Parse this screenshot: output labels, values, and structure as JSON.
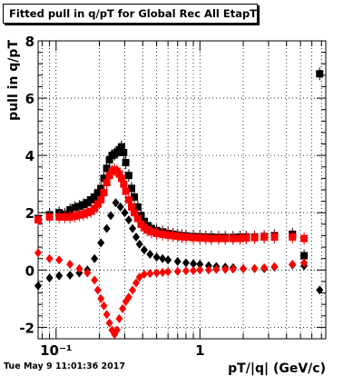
{
  "title": "Fitted pull in q/pT for Global Rec All EtapT",
  "footer_text": "Tue May  9 11:01:36 2017",
  "chart_data": {
    "type": "scatter",
    "title": "Fitted pull in q/pT for Global Rec All EtapT",
    "xlabel": "pT/|q| (GeV/c)",
    "ylabel": "pull in q/pT",
    "x_scale": "log",
    "xlim": [
      0.075,
      7.5
    ],
    "ylim": [
      -2.4,
      8
    ],
    "x_ticks": [
      {
        "v": 0.1,
        "label": "10⁻¹"
      },
      {
        "v": 1,
        "label": "1"
      }
    ],
    "y_ticks": [
      -2,
      0,
      2,
      4,
      6,
      8
    ],
    "grid": true,
    "series": [
      {
        "role": "sigma",
        "color": "#000000",
        "marker": "square",
        "points": [
          [
            0.075,
            1.8
          ],
          [
            0.09,
            1.93
          ],
          [
            0.105,
            2.0
          ],
          [
            0.115,
            1.95
          ],
          [
            0.125,
            2.1
          ],
          [
            0.135,
            2.18
          ],
          [
            0.145,
            2.22
          ],
          [
            0.155,
            2.28
          ],
          [
            0.165,
            2.35
          ],
          [
            0.175,
            2.45
          ],
          [
            0.185,
            2.55
          ],
          [
            0.195,
            2.7
          ],
          [
            0.205,
            2.85
          ],
          [
            0.215,
            3.2
          ],
          [
            0.225,
            3.55
          ],
          [
            0.235,
            3.85
          ],
          [
            0.245,
            4.0
          ],
          [
            0.255,
            4.05
          ],
          [
            0.265,
            4.1
          ],
          [
            0.275,
            4.2
          ],
          [
            0.285,
            4.3
          ],
          [
            0.295,
            4.1
          ],
          [
            0.305,
            3.75
          ],
          [
            0.32,
            3.3
          ],
          [
            0.335,
            2.85
          ],
          [
            0.35,
            2.55
          ],
          [
            0.37,
            2.2
          ],
          [
            0.39,
            1.9
          ],
          [
            0.41,
            1.7
          ],
          [
            0.43,
            1.55
          ],
          [
            0.46,
            1.45
          ],
          [
            0.5,
            1.38
          ],
          [
            0.55,
            1.33
          ],
          [
            0.6,
            1.28
          ],
          [
            0.65,
            1.25
          ],
          [
            0.7,
            1.22
          ],
          [
            0.75,
            1.2
          ],
          [
            0.8,
            1.19
          ],
          [
            0.9,
            1.17
          ],
          [
            1.0,
            1.16
          ],
          [
            1.1,
            1.15
          ],
          [
            1.2,
            1.15
          ],
          [
            1.35,
            1.14
          ],
          [
            1.5,
            1.14
          ],
          [
            1.7,
            1.14
          ],
          [
            1.9,
            1.15
          ],
          [
            2.1,
            1.15
          ],
          [
            2.4,
            1.15
          ],
          [
            2.8,
            1.17
          ],
          [
            3.3,
            1.2
          ],
          [
            4.4,
            1.25
          ],
          [
            5.3,
            0.5
          ],
          [
            6.8,
            6.85
          ]
        ]
      },
      {
        "role": "sigma",
        "color": "#ff0000",
        "marker": "square",
        "points": [
          [
            0.075,
            1.75
          ],
          [
            0.09,
            1.85
          ],
          [
            0.105,
            1.85
          ],
          [
            0.115,
            1.85
          ],
          [
            0.125,
            1.85
          ],
          [
            0.135,
            1.88
          ],
          [
            0.145,
            1.92
          ],
          [
            0.155,
            1.95
          ],
          [
            0.165,
            2.0
          ],
          [
            0.175,
            2.05
          ],
          [
            0.185,
            2.15
          ],
          [
            0.195,
            2.3
          ],
          [
            0.205,
            2.45
          ],
          [
            0.215,
            2.7
          ],
          [
            0.225,
            3.05
          ],
          [
            0.235,
            3.3
          ],
          [
            0.245,
            3.45
          ],
          [
            0.255,
            3.5
          ],
          [
            0.265,
            3.45
          ],
          [
            0.275,
            3.35
          ],
          [
            0.285,
            3.2
          ],
          [
            0.295,
            3.0
          ],
          [
            0.305,
            2.75
          ],
          [
            0.32,
            2.45
          ],
          [
            0.335,
            2.2
          ],
          [
            0.35,
            2.0
          ],
          [
            0.37,
            1.8
          ],
          [
            0.39,
            1.6
          ],
          [
            0.41,
            1.48
          ],
          [
            0.43,
            1.4
          ],
          [
            0.46,
            1.33
          ],
          [
            0.5,
            1.28
          ],
          [
            0.55,
            1.25
          ],
          [
            0.6,
            1.22
          ],
          [
            0.65,
            1.2
          ],
          [
            0.7,
            1.18
          ],
          [
            0.75,
            1.16
          ],
          [
            0.8,
            1.15
          ],
          [
            0.9,
            1.13
          ],
          [
            1.0,
            1.12
          ],
          [
            1.1,
            1.11
          ],
          [
            1.2,
            1.1
          ],
          [
            1.35,
            1.1
          ],
          [
            1.5,
            1.1
          ],
          [
            1.7,
            1.1
          ],
          [
            1.9,
            1.1
          ],
          [
            2.1,
            1.12
          ],
          [
            2.4,
            1.13
          ],
          [
            2.8,
            1.15
          ],
          [
            3.3,
            1.15
          ],
          [
            4.4,
            1.15
          ],
          [
            5.3,
            1.1
          ]
        ]
      },
      {
        "role": "mean",
        "color": "#000000",
        "marker": "diamond",
        "points": [
          [
            0.075,
            -0.55
          ],
          [
            0.09,
            -0.28
          ],
          [
            0.105,
            -0.2
          ],
          [
            0.125,
            -0.18
          ],
          [
            0.145,
            -0.1
          ],
          [
            0.165,
            0.0
          ],
          [
            0.185,
            0.4
          ],
          [
            0.205,
            0.95
          ],
          [
            0.225,
            1.45
          ],
          [
            0.24,
            1.9
          ],
          [
            0.26,
            2.35
          ],
          [
            0.28,
            2.2
          ],
          [
            0.3,
            2.0
          ],
          [
            0.32,
            1.75
          ],
          [
            0.34,
            1.45
          ],
          [
            0.36,
            1.15
          ],
          [
            0.38,
            0.9
          ],
          [
            0.41,
            0.7
          ],
          [
            0.45,
            0.55
          ],
          [
            0.5,
            0.45
          ],
          [
            0.55,
            0.4
          ],
          [
            0.6,
            0.35
          ],
          [
            0.7,
            0.3
          ],
          [
            0.8,
            0.25
          ],
          [
            0.9,
            0.22
          ],
          [
            1.0,
            0.2
          ],
          [
            1.15,
            0.15
          ],
          [
            1.3,
            0.12
          ],
          [
            1.5,
            0.1
          ],
          [
            1.7,
            0.08
          ],
          [
            2.0,
            0.05
          ],
          [
            2.4,
            0.05
          ],
          [
            2.8,
            0.05
          ],
          [
            3.3,
            0.1
          ],
          [
            4.4,
            0.18
          ],
          [
            5.3,
            0.15
          ],
          [
            6.8,
            -0.7
          ]
        ]
      },
      {
        "role": "mean",
        "color": "#ff0000",
        "marker": "diamond",
        "points": [
          [
            0.075,
            0.6
          ],
          [
            0.09,
            0.4
          ],
          [
            0.105,
            0.35
          ],
          [
            0.125,
            0.2
          ],
          [
            0.145,
            0.05
          ],
          [
            0.165,
            -0.1
          ],
          [
            0.185,
            -0.35
          ],
          [
            0.195,
            -0.7
          ],
          [
            0.205,
            -1.0
          ],
          [
            0.215,
            -1.25
          ],
          [
            0.225,
            -1.55
          ],
          [
            0.235,
            -1.85
          ],
          [
            0.245,
            -2.1
          ],
          [
            0.255,
            -2.25
          ],
          [
            0.265,
            -2.1
          ],
          [
            0.275,
            -1.7
          ],
          [
            0.29,
            -1.35
          ],
          [
            0.305,
            -1.1
          ],
          [
            0.32,
            -0.95
          ],
          [
            0.34,
            -0.7
          ],
          [
            0.36,
            -0.45
          ],
          [
            0.38,
            -0.25
          ],
          [
            0.41,
            -0.15
          ],
          [
            0.45,
            -0.12
          ],
          [
            0.5,
            -0.1
          ],
          [
            0.55,
            -0.08
          ],
          [
            0.6,
            -0.06
          ],
          [
            0.7,
            -0.05
          ],
          [
            0.8,
            -0.03
          ],
          [
            0.9,
            -0.02
          ],
          [
            1.0,
            0.0
          ],
          [
            1.15,
            0.0
          ],
          [
            1.3,
            0.02
          ],
          [
            1.5,
            0.02
          ],
          [
            1.7,
            0.03
          ],
          [
            2.0,
            0.04
          ],
          [
            2.4,
            0.05
          ],
          [
            2.8,
            0.08
          ],
          [
            3.3,
            0.12
          ],
          [
            4.4,
            0.2
          ],
          [
            5.3,
            0.25
          ]
        ]
      }
    ]
  }
}
